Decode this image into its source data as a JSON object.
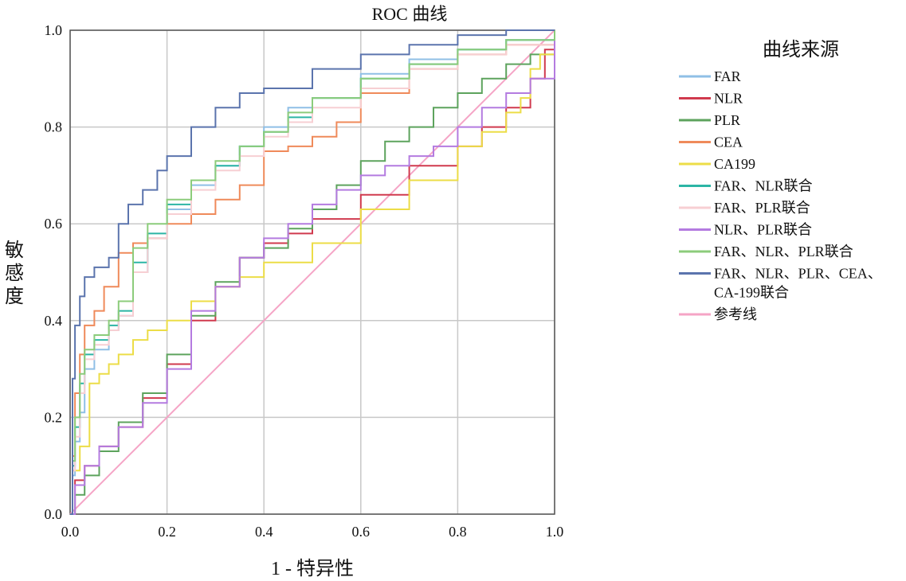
{
  "chart_data": {
    "type": "line",
    "title": "ROC 曲线",
    "xlabel": "1 - 特异性",
    "ylabel": "敏感度",
    "xlim": [
      0,
      1
    ],
    "ylim": [
      0,
      1
    ],
    "xticks": [
      "0.0",
      "0.2",
      "0.4",
      "0.6",
      "0.8",
      "1.0"
    ],
    "yticks": [
      "0.0",
      "0.2",
      "0.4",
      "0.6",
      "0.8",
      "1.0"
    ],
    "grid": true,
    "legend": {
      "title": "曲线来源",
      "placement": "right"
    },
    "series": [
      {
        "name": "FAR",
        "color": "#8fbfe6",
        "x": [
          0,
          0.005,
          0.01,
          0.02,
          0.03,
          0.05,
          0.08,
          0.1,
          0.13,
          0.16,
          0.2,
          0.25,
          0.3,
          0.35,
          0.4,
          0.45,
          0.5,
          0.6,
          0.7,
          0.8,
          0.9,
          1.0
        ],
        "y": [
          0,
          0.08,
          0.15,
          0.21,
          0.3,
          0.34,
          0.38,
          0.41,
          0.5,
          0.57,
          0.63,
          0.68,
          0.72,
          0.76,
          0.8,
          0.84,
          0.86,
          0.91,
          0.94,
          0.96,
          0.98,
          1.0
        ]
      },
      {
        "name": "NLR",
        "color": "#d03a4e",
        "x": [
          0,
          0.01,
          0.03,
          0.06,
          0.1,
          0.15,
          0.2,
          0.25,
          0.3,
          0.35,
          0.4,
          0.45,
          0.5,
          0.6,
          0.7,
          0.8,
          0.85,
          0.9,
          0.95,
          0.98,
          1.0
        ],
        "y": [
          0,
          0.07,
          0.1,
          0.14,
          0.18,
          0.24,
          0.31,
          0.4,
          0.47,
          0.53,
          0.56,
          0.58,
          0.61,
          0.66,
          0.72,
          0.76,
          0.8,
          0.84,
          0.9,
          0.96,
          1.0
        ]
      },
      {
        "name": "PLR",
        "color": "#5da35d",
        "x": [
          0,
          0.01,
          0.03,
          0.06,
          0.1,
          0.15,
          0.2,
          0.25,
          0.3,
          0.35,
          0.4,
          0.45,
          0.5,
          0.55,
          0.6,
          0.65,
          0.7,
          0.75,
          0.8,
          0.85,
          0.9,
          0.95,
          1.0
        ],
        "y": [
          0,
          0.04,
          0.08,
          0.13,
          0.19,
          0.25,
          0.33,
          0.41,
          0.48,
          0.53,
          0.55,
          0.59,
          0.63,
          0.68,
          0.73,
          0.77,
          0.8,
          0.84,
          0.87,
          0.9,
          0.93,
          0.95,
          1.0
        ]
      },
      {
        "name": "CEA",
        "color": "#ef8a5a",
        "x": [
          0,
          0.005,
          0.01,
          0.02,
          0.03,
          0.05,
          0.07,
          0.1,
          0.13,
          0.16,
          0.2,
          0.25,
          0.3,
          0.35,
          0.4,
          0.45,
          0.5,
          0.55,
          0.6,
          0.7,
          0.8,
          0.9,
          1.0
        ],
        "y": [
          0,
          0.12,
          0.25,
          0.33,
          0.39,
          0.42,
          0.47,
          0.54,
          0.56,
          0.57,
          0.6,
          0.62,
          0.65,
          0.68,
          0.75,
          0.76,
          0.78,
          0.81,
          0.87,
          0.92,
          0.95,
          0.97,
          1.0
        ]
      },
      {
        "name": "CA199",
        "color": "#ecdd47",
        "x": [
          0,
          0.005,
          0.02,
          0.04,
          0.06,
          0.08,
          0.1,
          0.13,
          0.16,
          0.2,
          0.25,
          0.3,
          0.35,
          0.4,
          0.5,
          0.6,
          0.7,
          0.8,
          0.85,
          0.9,
          0.93,
          0.95,
          0.97,
          1.0
        ],
        "y": [
          0,
          0.09,
          0.14,
          0.27,
          0.29,
          0.31,
          0.33,
          0.36,
          0.38,
          0.4,
          0.44,
          0.47,
          0.49,
          0.52,
          0.56,
          0.63,
          0.69,
          0.76,
          0.79,
          0.83,
          0.86,
          0.92,
          0.95,
          1.0
        ]
      },
      {
        "name": "FAR、NLR联合",
        "color": "#2cb5a5",
        "x": [
          0,
          0.005,
          0.01,
          0.02,
          0.03,
          0.05,
          0.08,
          0.1,
          0.13,
          0.16,
          0.2,
          0.25,
          0.3,
          0.35,
          0.4,
          0.45,
          0.5,
          0.6,
          0.7,
          0.8,
          0.9,
          1.0
        ],
        "y": [
          0,
          0.1,
          0.18,
          0.27,
          0.33,
          0.36,
          0.39,
          0.42,
          0.52,
          0.58,
          0.64,
          0.69,
          0.72,
          0.76,
          0.79,
          0.82,
          0.86,
          0.9,
          0.93,
          0.96,
          0.98,
          1.0
        ]
      },
      {
        "name": "FAR、PLR联合",
        "color": "#f7cfd3",
        "x": [
          0,
          0.005,
          0.01,
          0.02,
          0.03,
          0.05,
          0.08,
          0.1,
          0.13,
          0.16,
          0.2,
          0.25,
          0.3,
          0.35,
          0.4,
          0.45,
          0.5,
          0.6,
          0.7,
          0.8,
          0.9,
          1.0
        ],
        "y": [
          0,
          0.09,
          0.16,
          0.25,
          0.32,
          0.35,
          0.38,
          0.41,
          0.5,
          0.57,
          0.62,
          0.67,
          0.71,
          0.74,
          0.78,
          0.81,
          0.84,
          0.88,
          0.92,
          0.95,
          0.97,
          1.0
        ]
      },
      {
        "name": "NLR、PLR联合",
        "color": "#b47be0",
        "x": [
          0,
          0.01,
          0.03,
          0.06,
          0.1,
          0.15,
          0.2,
          0.25,
          0.3,
          0.35,
          0.4,
          0.45,
          0.5,
          0.55,
          0.6,
          0.65,
          0.7,
          0.75,
          0.8,
          0.85,
          0.9,
          0.95,
          1.0
        ],
        "y": [
          0,
          0.06,
          0.1,
          0.14,
          0.18,
          0.23,
          0.3,
          0.42,
          0.47,
          0.53,
          0.57,
          0.6,
          0.64,
          0.67,
          0.7,
          0.72,
          0.74,
          0.76,
          0.8,
          0.84,
          0.87,
          0.9,
          1.0
        ]
      },
      {
        "name": "FAR、NLR、PLR联合",
        "color": "#8ccc7b",
        "x": [
          0,
          0.005,
          0.01,
          0.02,
          0.03,
          0.05,
          0.08,
          0.1,
          0.13,
          0.16,
          0.2,
          0.25,
          0.3,
          0.35,
          0.4,
          0.45,
          0.5,
          0.6,
          0.7,
          0.8,
          0.9,
          1.0
        ],
        "y": [
          0,
          0.11,
          0.2,
          0.29,
          0.34,
          0.37,
          0.4,
          0.44,
          0.55,
          0.6,
          0.65,
          0.69,
          0.73,
          0.76,
          0.79,
          0.83,
          0.86,
          0.9,
          0.93,
          0.96,
          0.98,
          1.0
        ]
      },
      {
        "name": "FAR、NLR、PLR、CEA、CA-199联合",
        "color": "#5b74ad",
        "x": [
          0,
          0.005,
          0.01,
          0.02,
          0.03,
          0.05,
          0.08,
          0.1,
          0.12,
          0.15,
          0.18,
          0.2,
          0.25,
          0.3,
          0.35,
          0.4,
          0.5,
          0.6,
          0.7,
          0.8,
          0.9,
          1.0
        ],
        "y": [
          0,
          0.28,
          0.39,
          0.45,
          0.49,
          0.51,
          0.53,
          0.6,
          0.64,
          0.67,
          0.71,
          0.74,
          0.8,
          0.84,
          0.87,
          0.88,
          0.92,
          0.95,
          0.97,
          0.99,
          1.0,
          1.0
        ]
      },
      {
        "name": "参考线",
        "color": "#f5a4c6",
        "x": [
          0,
          1
        ],
        "y": [
          0,
          1
        ]
      }
    ]
  }
}
